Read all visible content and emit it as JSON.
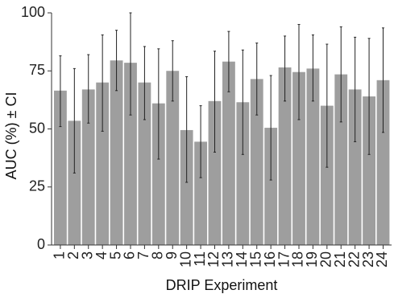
{
  "chart_data": {
    "type": "bar",
    "xlabel": "DRIP Experiment",
    "ylabel": "AUC (%) ± CI",
    "ylim": [
      0,
      100
    ],
    "yticks": [
      0,
      25,
      50,
      75,
      100
    ],
    "grid": false,
    "categories": [
      "1",
      "2",
      "3",
      "4",
      "5",
      "6",
      "7",
      "8",
      "9",
      "10",
      "11",
      "12",
      "13",
      "14",
      "15",
      "16",
      "17",
      "18",
      "19",
      "20",
      "21",
      "22",
      "23",
      "24"
    ],
    "values": [
      66.5,
      53.5,
      67,
      70,
      79.5,
      78.5,
      70,
      61,
      75,
      49.5,
      44.5,
      62,
      79,
      61.5,
      71.5,
      50.5,
      76.5,
      74.5,
      76,
      60,
      73.5,
      67,
      64,
      71
    ],
    "ci_lower": [
      51,
      31,
      52.5,
      49,
      66.5,
      56,
      54,
      37,
      62,
      27,
      29,
      40,
      66,
      39,
      56,
      28,
      62,
      54,
      62,
      33.5,
      53,
      44.5,
      39,
      48.5
    ],
    "ci_upper": [
      81.5,
      76,
      82,
      90.5,
      92.5,
      100,
      85.5,
      84.5,
      88,
      72.5,
      60,
      83.5,
      92,
      84,
      87,
      73,
      90,
      95,
      90.5,
      86.5,
      94,
      89.5,
      89,
      93.5
    ],
    "colors": {
      "bar": "#9e9e9e",
      "errorbar": "#222222",
      "axis": "#333333"
    }
  }
}
